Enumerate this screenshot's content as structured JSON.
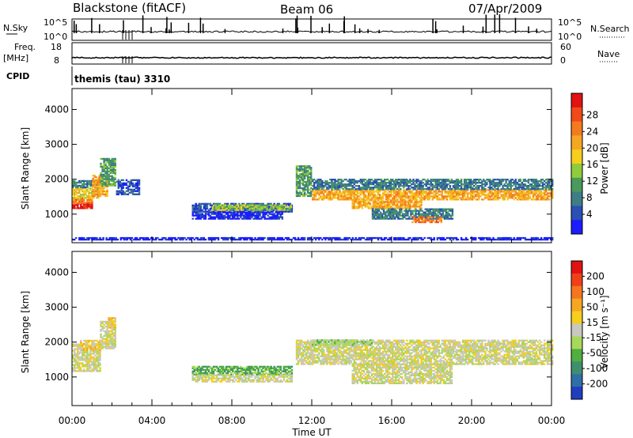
{
  "header": {
    "station": "Blackstone (fitACF)",
    "beam": "Beam 06",
    "date": "07/Apr/2009"
  },
  "strip_panels": {
    "nsky_label": "N.Sky",
    "nsky_ticks": [
      "10^5",
      "10^0"
    ],
    "nsearch_label": "N.Search",
    "nsearch_ticks": [
      "10^5",
      "10^0"
    ],
    "freq_label": "Freq.",
    "freq_unit": "[MHz]",
    "freq_ticks": [
      "18",
      "8"
    ],
    "nave_label": "Nave",
    "nave_ticks": [
      "60",
      "0"
    ],
    "cpid_label": "CPID",
    "cpid_value": "themis (tau) 3310"
  },
  "time_axis": {
    "xlabel": "Time UT",
    "ticks": [
      "00:00",
      "04:00",
      "08:00",
      "12:00",
      "16:00",
      "20:00",
      "00:00"
    ]
  },
  "chart_data": [
    {
      "type": "heatmap",
      "name": "power",
      "ylabel": "Slant Range [km]",
      "xlim_hours": [
        0,
        24
      ],
      "ylim_km": [
        180,
        4600
      ],
      "y_ticks": [
        "1000",
        "2000",
        "3000",
        "4000"
      ],
      "y_tick_values": [
        1000,
        2000,
        3000,
        4000
      ],
      "colorbar": {
        "label": "Power [dB]",
        "tick_labels": [
          "4",
          "8",
          "12",
          "16",
          "20",
          "24",
          "28"
        ],
        "colors": [
          "#1c1cff",
          "#2a4fb5",
          "#3d7d86",
          "#4a9a5e",
          "#8fcc3b",
          "#f5ce1e",
          "#f5a623",
          "#f57a1e",
          "#f04a1a",
          "#e01212"
        ]
      },
      "regions": [
        {
          "t": [
            0.0,
            1.0
          ],
          "r": [
            1150,
            1300
          ],
          "level": 9
        },
        {
          "t": [
            0.0,
            1.0
          ],
          "r": [
            1300,
            1450
          ],
          "level": 7
        },
        {
          "t": [
            0.0,
            1.4
          ],
          "r": [
            1450,
            1750
          ],
          "level": 5
        },
        {
          "t": [
            0.0,
            1.4
          ],
          "r": [
            1750,
            1950
          ],
          "level": 2
        },
        {
          "t": [
            1.0,
            1.8
          ],
          "r": [
            1500,
            2100
          ],
          "level": 6
        },
        {
          "t": [
            1.4,
            2.2
          ],
          "r": [
            1800,
            2600
          ],
          "level": 3
        },
        {
          "t": [
            2.2,
            3.4
          ],
          "r": [
            1550,
            2000
          ],
          "level": 1
        },
        {
          "t": [
            6.0,
            11.0
          ],
          "r": [
            1050,
            1300
          ],
          "level": 1
        },
        {
          "t": [
            6.0,
            10.5
          ],
          "r": [
            850,
            1050
          ],
          "level": 0
        },
        {
          "t": [
            7.0,
            11.0
          ],
          "r": [
            1100,
            1250
          ],
          "level": 4
        },
        {
          "t": [
            11.2,
            12.0
          ],
          "r": [
            1500,
            2400
          ],
          "level": 3
        },
        {
          "t": [
            12.0,
            24.0
          ],
          "r": [
            1400,
            1700
          ],
          "level": 6
        },
        {
          "t": [
            12.0,
            24.0
          ],
          "r": [
            1700,
            2000
          ],
          "level": 2
        },
        {
          "t": [
            14.0,
            17.5
          ],
          "r": [
            1150,
            1400
          ],
          "level": 6
        },
        {
          "t": [
            15.0,
            19.0
          ],
          "r": [
            850,
            1150
          ],
          "level": 2
        },
        {
          "t": [
            17.0,
            18.5
          ],
          "r": [
            750,
            900
          ],
          "level": 7
        },
        {
          "t": [
            0.0,
            24.0
          ],
          "r": [
            250,
            330
          ],
          "level": 0
        }
      ]
    },
    {
      "type": "heatmap",
      "name": "velocity",
      "ylabel": "Slant Range [km]",
      "xlim_hours": [
        0,
        24
      ],
      "ylim_km": [
        180,
        4600
      ],
      "y_ticks": [
        "1000",
        "2000",
        "3000",
        "4000"
      ],
      "y_tick_values": [
        1000,
        2000,
        3000,
        4000
      ],
      "colorbar": {
        "label": "Velocity [m s⁻¹]",
        "tick_labels": [
          "200",
          "100",
          "50",
          "15",
          "-15",
          "-50",
          "-100",
          "-200"
        ],
        "colors": [
          "#1f3fbf",
          "#2f6fa8",
          "#3f8f6f",
          "#4faf3f",
          "#a8d85a",
          "#c8c8c0",
          "#f5ce1e",
          "#f5a623",
          "#f5761e",
          "#f0401a",
          "#e01212"
        ]
      },
      "regions": [
        {
          "t": [
            0.0,
            1.4
          ],
          "r": [
            1150,
            1950
          ],
          "level": 5
        },
        {
          "t": [
            0.4,
            1.4
          ],
          "r": [
            1750,
            2050
          ],
          "level": 6
        },
        {
          "t": [
            1.4,
            2.2
          ],
          "r": [
            1800,
            2600
          ],
          "level": 5
        },
        {
          "t": [
            1.8,
            2.2
          ],
          "r": [
            2400,
            2700
          ],
          "level": 6
        },
        {
          "t": [
            6.0,
            11.0
          ],
          "r": [
            1050,
            1300
          ],
          "level": 3
        },
        {
          "t": [
            6.0,
            11.0
          ],
          "r": [
            850,
            1050
          ],
          "level": 5
        },
        {
          "t": [
            11.2,
            24.0
          ],
          "r": [
            1350,
            2050
          ],
          "level": 5
        },
        {
          "t": [
            14.0,
            19.0
          ],
          "r": [
            800,
            1350
          ],
          "level": 5
        },
        {
          "t": [
            12.0,
            15.0
          ],
          "r": [
            1900,
            2050
          ],
          "level": 4
        }
      ]
    }
  ]
}
